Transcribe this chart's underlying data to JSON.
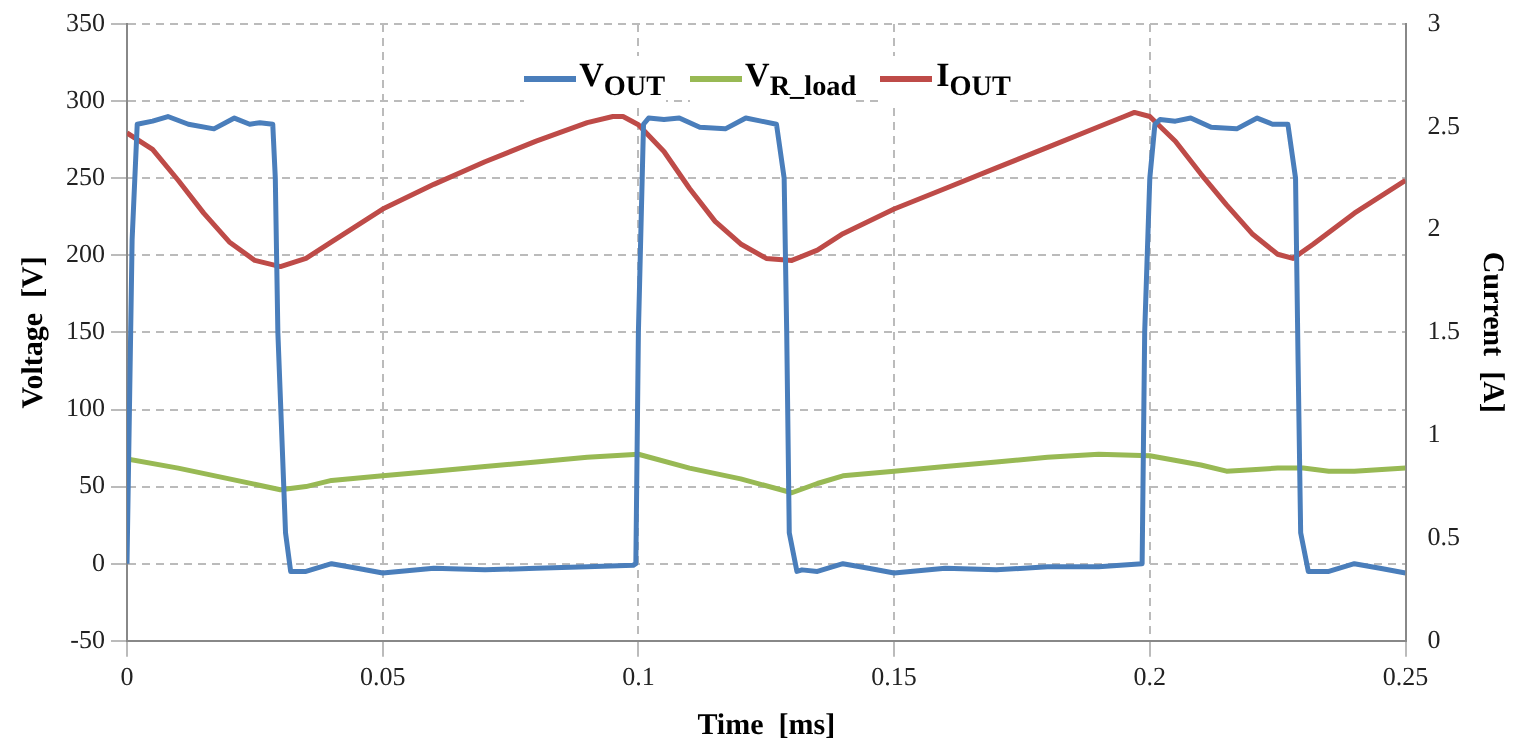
{
  "chart_data": {
    "type": "line",
    "xlabel": "Time  [ms]",
    "ylabel": "Voltage  [V]",
    "y2label": "Current  [A]",
    "xlim": [
      0,
      0.25
    ],
    "xticks": [
      0,
      0.05,
      0.1,
      0.15,
      0.2,
      0.25
    ],
    "ylim": [
      -50,
      350
    ],
    "yticks": [
      -50,
      0,
      50,
      100,
      150,
      200,
      250,
      300,
      350
    ],
    "y2lim": [
      0,
      3
    ],
    "y2ticks": [
      0,
      0.5,
      1,
      1.5,
      2,
      2.5,
      3
    ],
    "grid": true,
    "legend": "top",
    "marker": "none",
    "line_style": "solid",
    "series": [
      {
        "name": "V$_{OUT}$",
        "color": "#4a7ebb",
        "x": [
          0,
          0.001,
          0.002,
          0.005,
          0.008,
          0.012,
          0.017,
          0.021,
          0.024,
          0.026,
          0.0285,
          0.029,
          0.0295,
          0.031,
          0.032,
          0.035,
          0.04,
          0.045,
          0.05,
          0.06,
          0.07,
          0.08,
          0.09,
          0.099,
          0.0995,
          0.1,
          0.101,
          0.102,
          0.105,
          0.108,
          0.112,
          0.117,
          0.121,
          0.124,
          0.127,
          0.1285,
          0.129,
          0.1295,
          0.131,
          0.132,
          0.135,
          0.14,
          0.145,
          0.15,
          0.16,
          0.17,
          0.18,
          0.19,
          0.1985,
          0.199,
          0.2,
          0.201,
          0.202,
          0.205,
          0.208,
          0.212,
          0.217,
          0.221,
          0.224,
          0.227,
          0.2285,
          0.229,
          0.2295,
          0.231,
          0.232,
          0.235,
          0.24,
          0.245,
          0.25
        ],
        "values": [
          0,
          210,
          285,
          287,
          290,
          285,
          282,
          289,
          285,
          286,
          285,
          250,
          150,
          20,
          -5,
          -5,
          0,
          -3,
          -6,
          -3,
          -4,
          -3,
          -2,
          -1,
          0,
          150,
          285,
          289,
          288,
          289,
          283,
          282,
          289,
          287,
          285,
          250,
          150,
          20,
          -5,
          -4,
          -5,
          0,
          -3,
          -6,
          -3,
          -4,
          -2,
          -2,
          0,
          150,
          250,
          285,
          288,
          287,
          289,
          283,
          282,
          289,
          285,
          285,
          250,
          130,
          20,
          -5,
          -5,
          -5,
          0,
          -3,
          -6
        ]
      },
      {
        "name": "V$_{R_load}$",
        "color": "#98b954",
        "x": [
          0,
          0.01,
          0.02,
          0.03,
          0.035,
          0.04,
          0.05,
          0.06,
          0.07,
          0.08,
          0.09,
          0.1,
          0.11,
          0.12,
          0.13,
          0.135,
          0.14,
          0.15,
          0.16,
          0.17,
          0.18,
          0.19,
          0.2,
          0.21,
          0.215,
          0.22,
          0.225,
          0.23,
          0.235,
          0.24,
          0.25
        ],
        "values": [
          68,
          62,
          55,
          48,
          50,
          54,
          57,
          60,
          63,
          66,
          69,
          71,
          62,
          55,
          46,
          52,
          57,
          60,
          63,
          66,
          69,
          71,
          70,
          64,
          60,
          61,
          62,
          62,
          60,
          60,
          62
        ]
      },
      {
        "name": "I$_{OUT}$",
        "color": "#be4b48",
        "axis": "y2",
        "x": [
          0,
          0.005,
          0.01,
          0.015,
          0.02,
          0.025,
          0.03,
          0.035,
          0.04,
          0.05,
          0.06,
          0.07,
          0.08,
          0.09,
          0.095,
          0.097,
          0.1,
          0.105,
          0.11,
          0.115,
          0.12,
          0.125,
          0.13,
          0.135,
          0.14,
          0.15,
          0.16,
          0.17,
          0.18,
          0.19,
          0.195,
          0.197,
          0.2,
          0.205,
          0.21,
          0.215,
          0.22,
          0.225,
          0.228,
          0.232,
          0.24,
          0.25
        ],
        "values": [
          2.47,
          2.39,
          2.24,
          2.08,
          1.94,
          1.85,
          1.82,
          1.86,
          1.94,
          2.1,
          2.22,
          2.33,
          2.43,
          2.52,
          2.55,
          2.55,
          2.51,
          2.38,
          2.2,
          2.04,
          1.93,
          1.86,
          1.85,
          1.9,
          1.98,
          2.1,
          2.2,
          2.3,
          2.4,
          2.5,
          2.55,
          2.57,
          2.55,
          2.43,
          2.27,
          2.12,
          1.98,
          1.88,
          1.86,
          1.93,
          2.08,
          2.24
        ]
      }
    ]
  }
}
